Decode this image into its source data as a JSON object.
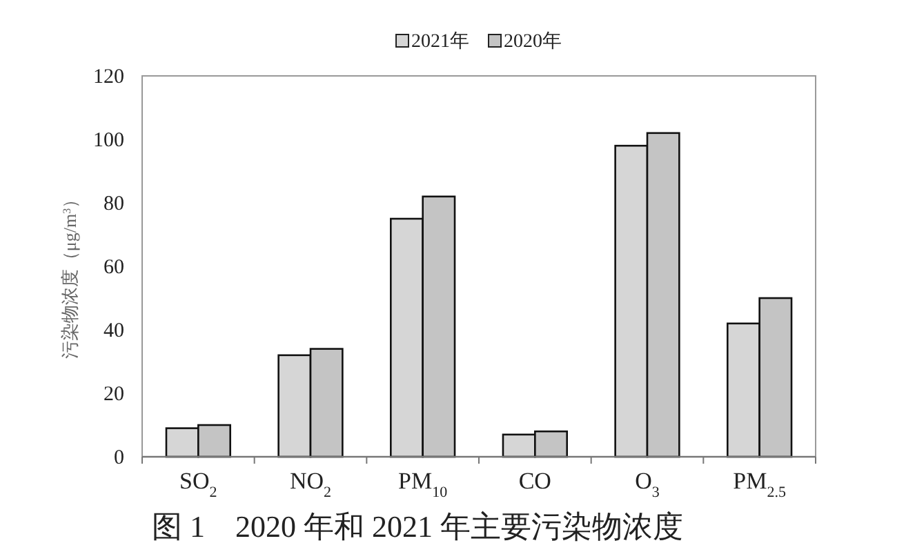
{
  "chart_data": {
    "type": "bar",
    "categories": [
      "SO$_{2}$",
      "NO$_{2}$",
      "PM$_{10}$",
      "CO",
      "O$_{3}$",
      "PM$_{2.5}$"
    ],
    "series": [
      {
        "name": "2021年",
        "color": "#d6d6d6",
        "values": [
          9,
          32,
          75,
          7,
          98,
          42
        ]
      },
      {
        "name": "2020年",
        "color": "#c4c4c4",
        "values": [
          10,
          34,
          82,
          8,
          102,
          50
        ]
      }
    ],
    "ylabel": "污染物浓度（μg/m$^{3}$）",
    "ylim": [
      0,
      120
    ],
    "yticks": [
      0,
      20,
      40,
      60,
      80,
      100,
      120
    ],
    "legend": "top",
    "annotations": [
      "图 1　2020 年和 2021 年主要污染物浓度"
    ]
  }
}
